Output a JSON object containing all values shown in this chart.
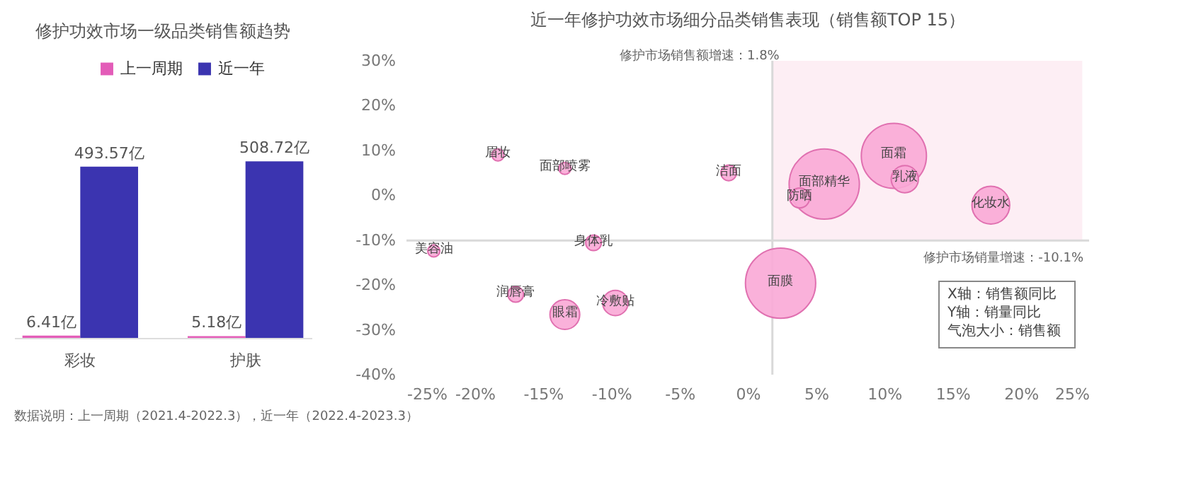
{
  "chart_data": [
    {
      "type": "bar",
      "title": "修护功效市场一级品类销售额趋势",
      "categories": [
        "彩妆",
        "护肤"
      ],
      "series": [
        {
          "name": "上一周期",
          "color": "#e35cb8",
          "values": [
            6.41,
            5.18
          ],
          "value_labels": [
            "6.41亿",
            "5.18亿"
          ]
        },
        {
          "name": "近一年",
          "color": "#3b34b0",
          "values": [
            493.57,
            508.72
          ],
          "value_labels": [
            "493.57亿",
            "508.72亿"
          ]
        }
      ],
      "legend": "top",
      "grid": false,
      "tick_labels": "x",
      "annotations": [
        "数据说明：上一周期（2021.4-2022.3），近一年（2022.4-2023.3）"
      ]
    },
    {
      "type": "bubble",
      "title": "近一年修护功效市场细分品类销售表现（销售额TOP 15）",
      "series": [
        {
          "color": "#f9a8d6",
          "x": [
            -18.3,
            -13.4,
            -1.4,
            -11.3,
            -23.0,
            -17.0,
            -13.4,
            -9.7,
            2.4,
            5.6,
            3.8,
            10.7,
            11.5,
            17.8
          ],
          "values": [
            9.0,
            6.0,
            5.0,
            -10.6,
            -12.4,
            -22.1,
            -26.6,
            -24.0,
            -19.6,
            2.5,
            -0.6,
            8.8,
            3.6,
            -2.2
          ],
          "sizes": [
            0.03,
            0.03,
            0.05,
            0.05,
            0.03,
            0.05,
            0.18,
            0.13,
            1,
            1,
            0.08,
            0.86,
            0.15,
            0.29
          ]
        }
      ],
      "xlim": [
        -25,
        25
      ],
      "xticks": [
        {
          "value": -25,
          "label": "-25%"
        },
        {
          "value": -20,
          "label": "-20%"
        },
        {
          "value": -15,
          "label": "-15%"
        },
        {
          "value": -10,
          "label": "-10%"
        },
        {
          "value": -5,
          "label": "-5%"
        },
        {
          "value": 0,
          "label": "0%"
        },
        {
          "value": 5,
          "label": "5%"
        },
        {
          "value": 10,
          "label": "10%"
        },
        {
          "value": 15,
          "label": "15%"
        },
        {
          "value": 20,
          "label": "20%"
        },
        {
          "value": 25,
          "label": "25%"
        }
      ],
      "ylim": [
        -40,
        30
      ],
      "yticks": [
        {
          "value": -40,
          "label": "-40%"
        },
        {
          "value": -30,
          "label": "-30%"
        },
        {
          "value": -20,
          "label": "-20%"
        },
        {
          "value": -10,
          "label": "-10%"
        },
        {
          "value": 0,
          "label": "0%"
        },
        {
          "value": 10,
          "label": "10%"
        },
        {
          "value": 20,
          "label": "20%"
        },
        {
          "value": 30,
          "label": "30%"
        }
      ],
      "grid": false,
      "ref_lines": [
        {
          "axis": "x",
          "value": 1.8,
          "label": "修护市场销售额增速：1.8%",
          "color": "#d9d9d9"
        },
        {
          "axis": "y",
          "value": -10.1,
          "label": "修护市场销量增速：-10.1%",
          "color": "#d9d9d9"
        }
      ],
      "bands": [
        {
          "axis": "x",
          "from": 1.8,
          "to": 24.5,
          "color": "#fdeef4"
        }
      ],
      "annotations": [
        {
          "text": "眉妆",
          "x": -18.3,
          "y": 9.0
        },
        {
          "text": "面部喷雾",
          "x": -13.4,
          "y": 6.0
        },
        {
          "text": "洁面",
          "x": -1.4,
          "y": 5.0
        },
        {
          "text": "身体乳",
          "x": -11.3,
          "y": -10.6
        },
        {
          "text": "美容油",
          "x": -23.0,
          "y": -12.4
        },
        {
          "text": "润唇膏",
          "x": -17.0,
          "y": -22.1
        },
        {
          "text": "眼霜",
          "x": -13.4,
          "y": -26.6
        },
        {
          "text": "冷敷贴",
          "x": -9.7,
          "y": -24.0
        },
        {
          "text": "面膜",
          "x": 2.4,
          "y": -19.6
        },
        {
          "text": "面部精华",
          "x": 5.6,
          "y": 2.5
        },
        {
          "text": "防晒",
          "x": 3.8,
          "y": -0.6
        },
        {
          "text": "面霜",
          "x": 10.7,
          "y": 8.8
        },
        {
          "text": "乳液",
          "x": 11.5,
          "y": 3.6
        },
        {
          "text": "化妆水",
          "x": 17.8,
          "y": -2.2
        },
        "X轴：销售额同比",
        "Y轴：销量同比",
        "气泡大小：销售额"
      ]
    }
  ]
}
